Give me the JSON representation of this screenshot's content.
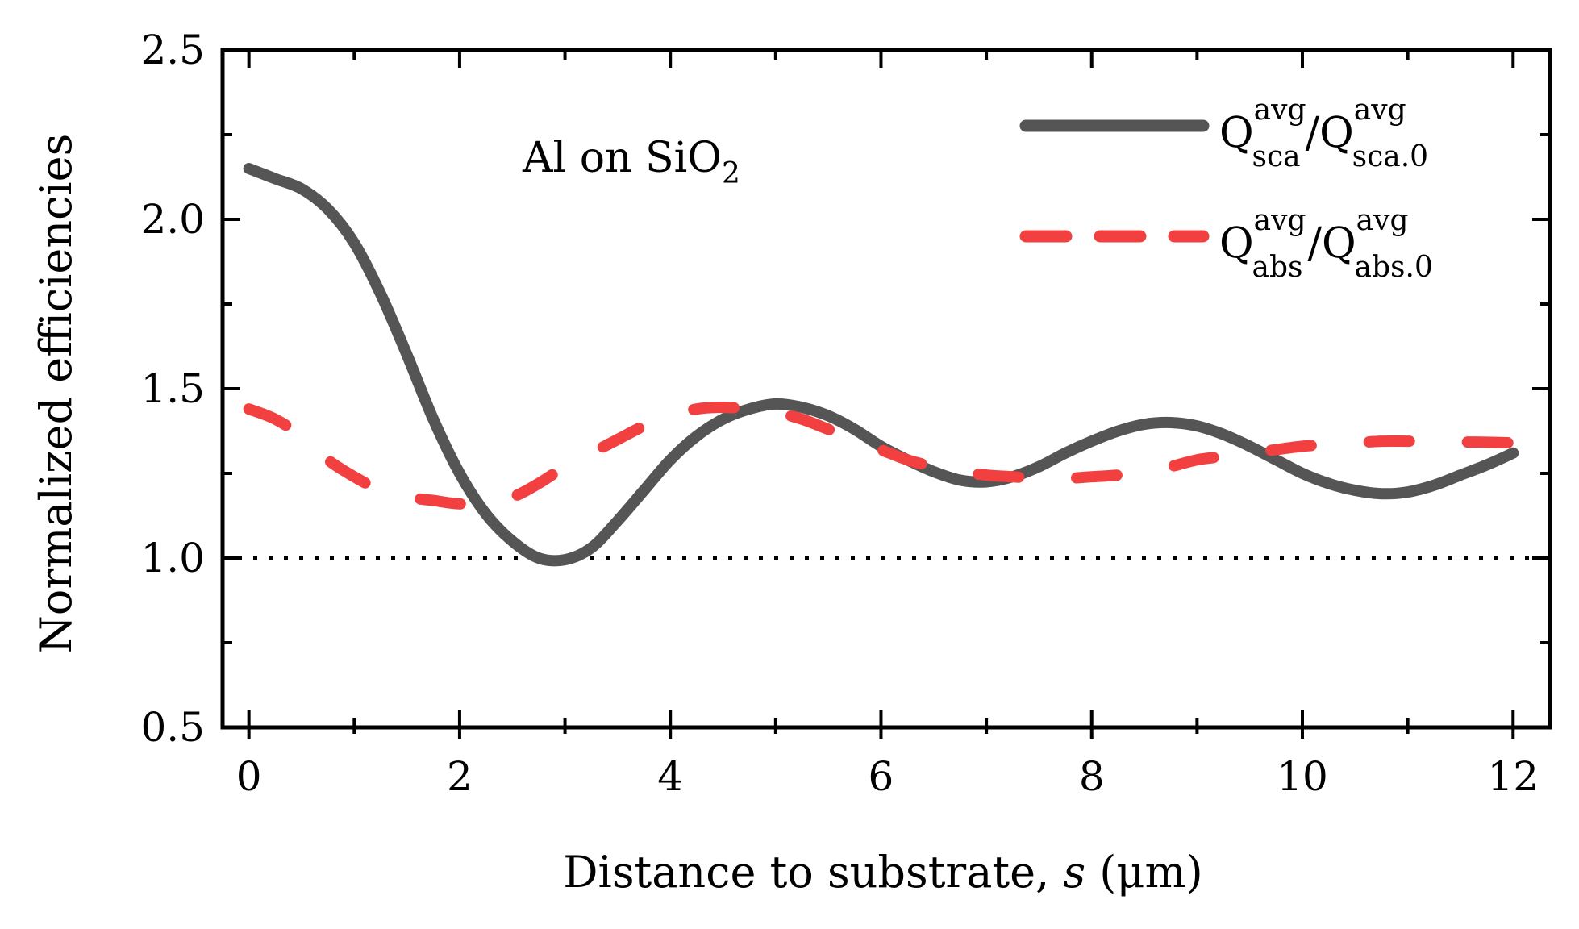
{
  "chart_data": {
    "type": "line",
    "title": "",
    "annotation": {
      "main": "Al on SiO",
      "sub": "2"
    },
    "xlabel": {
      "prefix": "Distance to substrate, ",
      "var": "s",
      "suffix": " (μm)"
    },
    "ylabel": "Normalized efficiencies",
    "xlim": [
      -0.25,
      12.35
    ],
    "ylim": [
      0.5,
      2.5
    ],
    "xticks": [
      0,
      2,
      4,
      6,
      8,
      10,
      12
    ],
    "yticks": [
      0.5,
      1.0,
      1.5,
      2.0,
      2.5
    ],
    "xtick_labels": [
      "0",
      "2",
      "4",
      "6",
      "8",
      "10",
      "12"
    ],
    "ytick_labels": [
      "0.5",
      "1.0",
      "1.5",
      "2.0",
      "2.5"
    ],
    "reference_line": {
      "y": 1.0,
      "style": "dotted",
      "color": "#000000"
    },
    "legend_position": "top-right",
    "series": [
      {
        "name": "Q_sca^avg / Q_sca.0^avg",
        "legend": {
          "q": "Q",
          "sup": "avg",
          "sub": "sca",
          "slash": "/",
          "q2": "Q",
          "sup2": "avg",
          "sub2": "sca.0"
        },
        "color": "#555555",
        "style": "solid",
        "x": [
          0,
          0.25,
          0.5,
          0.75,
          1.0,
          1.25,
          1.5,
          1.75,
          2.0,
          2.25,
          2.5,
          2.75,
          3.0,
          3.25,
          3.5,
          3.75,
          4.0,
          4.25,
          4.5,
          4.75,
          5.0,
          5.25,
          5.5,
          5.75,
          6.0,
          6.25,
          6.5,
          6.75,
          7.0,
          7.25,
          7.5,
          7.75,
          8.0,
          8.25,
          8.5,
          8.75,
          9.0,
          9.25,
          9.5,
          9.75,
          10.0,
          10.25,
          10.5,
          10.75,
          11.0,
          11.25,
          11.5,
          11.75,
          12.0
        ],
        "values": [
          2.15,
          2.12,
          2.09,
          2.03,
          1.93,
          1.78,
          1.6,
          1.41,
          1.25,
          1.13,
          1.05,
          1.0,
          0.995,
          1.03,
          1.11,
          1.2,
          1.29,
          1.36,
          1.41,
          1.44,
          1.455,
          1.445,
          1.42,
          1.38,
          1.33,
          1.29,
          1.255,
          1.23,
          1.225,
          1.24,
          1.27,
          1.31,
          1.345,
          1.375,
          1.395,
          1.4,
          1.39,
          1.365,
          1.33,
          1.29,
          1.25,
          1.22,
          1.2,
          1.19,
          1.195,
          1.215,
          1.245,
          1.275,
          1.31
        ]
      },
      {
        "name": "Q_abs^avg / Q_abs.0^avg",
        "legend": {
          "q": "Q",
          "sup": "avg",
          "sub": "abs",
          "slash": "/",
          "q2": "Q",
          "sup2": "avg",
          "sub2": "abs.0"
        },
        "color": "#f24040",
        "style": "dashed",
        "x": [
          0,
          0.25,
          0.5,
          0.75,
          1.0,
          1.25,
          1.5,
          1.75,
          2.0,
          2.25,
          2.5,
          2.75,
          3.0,
          3.25,
          3.5,
          3.75,
          4.0,
          4.25,
          4.5,
          4.75,
          5.0,
          5.25,
          5.5,
          5.75,
          6.0,
          6.25,
          6.5,
          6.75,
          7.0,
          7.25,
          7.5,
          7.75,
          8.0,
          8.25,
          8.5,
          8.75,
          9.0,
          9.25,
          9.5,
          9.75,
          10.0,
          10.25,
          10.5,
          10.75,
          11.0,
          11.25,
          11.5,
          11.75,
          12.0
        ],
        "values": [
          1.44,
          1.41,
          1.36,
          1.29,
          1.24,
          1.2,
          1.18,
          1.17,
          1.16,
          1.165,
          1.18,
          1.22,
          1.27,
          1.31,
          1.35,
          1.39,
          1.42,
          1.44,
          1.445,
          1.44,
          1.43,
          1.41,
          1.38,
          1.35,
          1.32,
          1.29,
          1.27,
          1.255,
          1.245,
          1.24,
          1.235,
          1.235,
          1.24,
          1.245,
          1.255,
          1.27,
          1.29,
          1.3,
          1.31,
          1.32,
          1.33,
          1.335,
          1.34,
          1.345,
          1.345,
          1.345,
          1.343,
          1.342,
          1.34
        ]
      }
    ]
  }
}
